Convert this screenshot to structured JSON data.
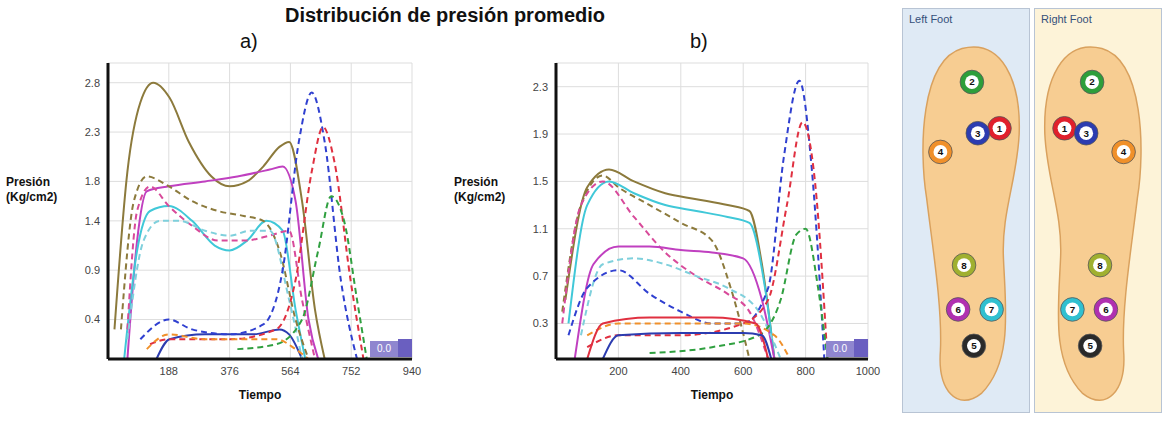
{
  "title": "Distribución de presión promedio",
  "chart_data": [
    {
      "type": "line",
      "panel": "a)",
      "x_label": "Tiempo",
      "y_label": "Presión (Kg/cm2)",
      "annotation": "0.0",
      "xlim": [
        0,
        940
      ],
      "xticks": [
        188,
        376,
        564,
        752,
        940
      ],
      "ylim": [
        0,
        3
      ],
      "yticks": [
        0.4,
        0.9,
        1.4,
        1.8,
        2.3,
        2.8
      ],
      "grid": true,
      "series": [
        {
          "color": "#8c7a3c",
          "line_style": "solid",
          "x": [
            20,
            60,
            100,
            140,
            190,
            250,
            320,
            376,
            430,
            480,
            530,
            560,
            600,
            640,
            670
          ],
          "values": [
            0.3,
            1.9,
            2.6,
            2.8,
            2.65,
            2.2,
            1.85,
            1.75,
            1.8,
            1.95,
            2.15,
            2.2,
            1.6,
            0.5,
            0
          ]
        },
        {
          "color": "#c040c0",
          "line_style": "solid",
          "x": [
            60,
            90,
            120,
            188,
            300,
            400,
            500,
            540,
            580,
            620,
            650
          ],
          "values": [
            0,
            1.2,
            1.7,
            1.75,
            1.8,
            1.85,
            1.92,
            1.95,
            1.6,
            0.4,
            0
          ]
        },
        {
          "color": "#40c8d8",
          "line_style": "solid",
          "x": [
            50,
            90,
            130,
            188,
            260,
            330,
            376,
            430,
            490,
            540,
            580,
            610
          ],
          "values": [
            0,
            1.1,
            1.5,
            1.55,
            1.4,
            1.15,
            1.1,
            1.2,
            1.4,
            1.3,
            0.5,
            0
          ]
        },
        {
          "color": "#2c3cb0",
          "line_style": "solid",
          "x": [
            150,
            190,
            300,
            450,
            530,
            560,
            600
          ],
          "values": [
            0,
            0.2,
            0.25,
            0.25,
            0.3,
            0.25,
            0
          ]
        },
        {
          "color": "#8c7a3c",
          "line_style": "dashed",
          "x": [
            40,
            80,
            120,
            188,
            260,
            340,
            420,
            480,
            530,
            580,
            620
          ],
          "values": [
            0.3,
            1.6,
            1.85,
            1.75,
            1.6,
            1.5,
            1.45,
            1.4,
            1.1,
            0.4,
            0
          ]
        },
        {
          "color": "#d84a9a",
          "line_style": "dashed",
          "x": [
            60,
            90,
            130,
            188,
            260,
            340,
            420,
            500,
            560,
            600,
            640
          ],
          "values": [
            0.3,
            1.5,
            1.75,
            1.55,
            1.35,
            1.2,
            1.2,
            1.25,
            1.3,
            0.6,
            0
          ]
        },
        {
          "color": "#7fd0dc",
          "line_style": "dashed",
          "x": [
            60,
            110,
            160,
            220,
            300,
            376,
            440,
            500,
            560,
            600
          ],
          "values": [
            0.2,
            1.2,
            1.4,
            1.4,
            1.3,
            1.25,
            1.3,
            1.3,
            0.6,
            0
          ]
        },
        {
          "color": "#3040d0",
          "line_style": "dashed",
          "x": [
            100,
            188,
            260,
            376,
            480,
            540,
            590,
            630,
            670,
            720,
            770
          ],
          "values": [
            0.2,
            0.4,
            0.3,
            0.25,
            0.35,
            0.9,
            2.2,
            2.7,
            2.2,
            0.8,
            0
          ]
        },
        {
          "color": "#e03040",
          "line_style": "dashed",
          "x": [
            130,
            188,
            376,
            520,
            580,
            630,
            665,
            700,
            750,
            790
          ],
          "values": [
            0.15,
            0.2,
            0.2,
            0.3,
            0.8,
            1.9,
            2.35,
            2.0,
            0.8,
            0
          ]
        },
        {
          "color": "#30a040",
          "line_style": "dashed",
          "x": [
            400,
            520,
            600,
            650,
            690,
            730,
            770,
            800
          ],
          "values": [
            0.1,
            0.15,
            0.4,
            1.1,
            1.65,
            1.4,
            0.6,
            0
          ]
        },
        {
          "color": "#f0902a",
          "line_style": "dashed",
          "x": [
            120,
            188,
            300,
            420,
            520,
            580,
            620
          ],
          "values": [
            0.1,
            0.25,
            0.2,
            0.2,
            0.2,
            0.1,
            0
          ]
        }
      ]
    },
    {
      "type": "line",
      "panel": "b)",
      "x_label": "Tiempo",
      "y_label": "Presión (Kg/cm2)",
      "annotation": "0.0",
      "xlim": [
        0,
        1000
      ],
      "xticks": [
        200,
        400,
        600,
        800,
        1000
      ],
      "ylim": [
        0,
        2.5
      ],
      "yticks": [
        0.3,
        0.7,
        1.1,
        1.5,
        1.9,
        2.3
      ],
      "grid": true,
      "series": [
        {
          "color": "#8c7a3c",
          "line_style": "solid",
          "x": [
            30,
            100,
            170,
            250,
            350,
            450,
            550,
            620,
            660,
            700
          ],
          "values": [
            0.5,
            1.45,
            1.6,
            1.5,
            1.4,
            1.35,
            1.3,
            1.25,
            0.8,
            0
          ]
        },
        {
          "color": "#8c7a3c",
          "line_style": "dashed",
          "x": [
            20,
            80,
            150,
            200,
            300,
            400,
            500,
            560,
            620
          ],
          "values": [
            0.4,
            1.3,
            1.55,
            1.45,
            1.3,
            1.15,
            1.0,
            0.6,
            0
          ]
        },
        {
          "color": "#40c8d8",
          "line_style": "solid",
          "x": [
            40,
            100,
            170,
            250,
            350,
            450,
            550,
            620,
            670,
            700
          ],
          "values": [
            0.3,
            1.3,
            1.5,
            1.4,
            1.3,
            1.25,
            1.2,
            1.15,
            0.6,
            0
          ]
        },
        {
          "color": "#d84a9a",
          "line_style": "dashed",
          "x": [
            20,
            80,
            150,
            250,
            350,
            450,
            550,
            620,
            680
          ],
          "values": [
            0.3,
            1.3,
            1.5,
            1.2,
            0.9,
            0.7,
            0.55,
            0.4,
            0
          ]
        },
        {
          "color": "#c040c0",
          "line_style": "solid",
          "x": [
            60,
            120,
            200,
            300,
            400,
            500,
            600,
            660,
            700
          ],
          "values": [
            0,
            0.8,
            0.95,
            0.95,
            0.92,
            0.9,
            0.85,
            0.5,
            0
          ]
        },
        {
          "color": "#7fd0dc",
          "line_style": "dashed",
          "x": [
            80,
            150,
            250,
            350,
            450,
            550,
            650,
            720
          ],
          "values": [
            0.2,
            0.8,
            0.85,
            0.8,
            0.7,
            0.6,
            0.4,
            0
          ]
        },
        {
          "color": "#3040d0",
          "line_style": "dashed",
          "x": [
            40,
            100,
            200,
            300,
            400,
            500,
            600,
            680,
            730,
            780,
            820,
            860
          ],
          "values": [
            0.2,
            0.6,
            0.75,
            0.55,
            0.4,
            0.3,
            0.3,
            0.6,
            1.7,
            2.35,
            1.6,
            0
          ]
        },
        {
          "color": "#e03040",
          "line_style": "dashed",
          "x": [
            100,
            200,
            400,
            600,
            680,
            740,
            790,
            830,
            870
          ],
          "values": [
            0.1,
            0.2,
            0.2,
            0.3,
            0.5,
            1.3,
            2.0,
            1.5,
            0
          ]
        },
        {
          "color": "#30a040",
          "line_style": "dashed",
          "x": [
            300,
            500,
            650,
            720,
            770,
            800,
            840,
            870
          ],
          "values": [
            0.05,
            0.1,
            0.2,
            0.5,
            1.05,
            1.1,
            0.6,
            0
          ]
        },
        {
          "color": "#f0902a",
          "line_style": "dashed",
          "x": [
            100,
            200,
            400,
            600,
            700,
            750
          ],
          "values": [
            0.2,
            0.3,
            0.3,
            0.3,
            0.2,
            0
          ]
        },
        {
          "color": "#e03040",
          "line_style": "solid",
          "x": [
            100,
            150,
            300,
            500,
            640,
            680
          ],
          "values": [
            0,
            0.3,
            0.35,
            0.35,
            0.3,
            0
          ]
        },
        {
          "color": "#2c3cb0",
          "line_style": "solid",
          "x": [
            150,
            200,
            400,
            600,
            660,
            690
          ],
          "values": [
            0,
            0.2,
            0.22,
            0.22,
            0.2,
            0
          ]
        }
      ]
    }
  ],
  "foot_diagram": {
    "panels": [
      {
        "title": "Left Foot",
        "sensors": [
          {
            "label": "1",
            "color": "#e0202c"
          },
          {
            "label": "2",
            "color": "#2e9e3a"
          },
          {
            "label": "3",
            "color": "#2c3cb0"
          },
          {
            "label": "4",
            "color": "#f0902a"
          },
          {
            "label": "5",
            "color": "#2a2a2a"
          },
          {
            "label": "6",
            "color": "#b030b0"
          },
          {
            "label": "7",
            "color": "#30c0d0"
          },
          {
            "label": "8",
            "color": "#a0b030"
          }
        ]
      },
      {
        "title": "Right Foot",
        "sensors": [
          {
            "label": "1",
            "color": "#e0202c"
          },
          {
            "label": "2",
            "color": "#2e9e3a"
          },
          {
            "label": "3",
            "color": "#2c3cb0"
          },
          {
            "label": "4",
            "color": "#f0902a"
          },
          {
            "label": "5",
            "color": "#2a2a2a"
          },
          {
            "label": "6",
            "color": "#b030b0"
          },
          {
            "label": "7",
            "color": "#30c0d0"
          },
          {
            "label": "8",
            "color": "#a0b030"
          }
        ]
      }
    ]
  }
}
